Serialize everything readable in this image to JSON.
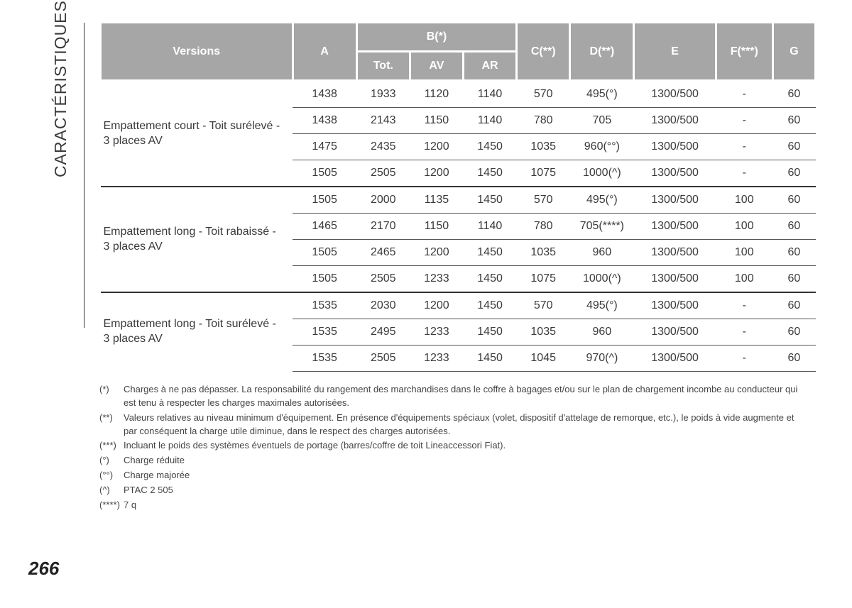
{
  "sidebar": {
    "label": "CARACTÉRISTIQUES TECHNIQUES"
  },
  "table": {
    "header": {
      "versions": "Versions",
      "A": "A",
      "B": "B(*)",
      "Tot": "Tot.",
      "AV": "AV",
      "AR": "AR",
      "C": "C(**)",
      "D": "D(**)",
      "E": "E",
      "F": "F(***)",
      "G": "G"
    },
    "groups": [
      {
        "label": "Empattement court - Toit surélevé - 3 places AV",
        "rows": [
          {
            "A": "1438",
            "Tot": "1933",
            "AV": "1120",
            "AR": "1140",
            "C": "570",
            "D": "495(°)",
            "E": "1300/500",
            "F": "-",
            "G": "60"
          },
          {
            "A": "1438",
            "Tot": "2143",
            "AV": "1150",
            "AR": "1140",
            "C": "780",
            "D": "705",
            "E": "1300/500",
            "F": "-",
            "G": "60"
          },
          {
            "A": "1475",
            "Tot": "2435",
            "AV": "1200",
            "AR": "1450",
            "C": "1035",
            "D": "960(°°)",
            "E": "1300/500",
            "F": "-",
            "G": "60"
          },
          {
            "A": "1505",
            "Tot": "2505",
            "AV": "1200",
            "AR": "1450",
            "C": "1075",
            "D": "1000(^)",
            "E": "1300/500",
            "F": "-",
            "G": "60"
          }
        ]
      },
      {
        "label": "Empattement long - Toit rabaissé - 3 places AV",
        "rows": [
          {
            "A": "1505",
            "Tot": "2000",
            "AV": "1135",
            "AR": "1450",
            "C": "570",
            "D": "495(°)",
            "E": "1300/500",
            "F": "100",
            "G": "60"
          },
          {
            "A": "1465",
            "Tot": "2170",
            "AV": "1150",
            "AR": "1140",
            "C": "780",
            "D": "705(****)",
            "E": "1300/500",
            "F": "100",
            "G": "60"
          },
          {
            "A": "1505",
            "Tot": "2465",
            "AV": "1200",
            "AR": "1450",
            "C": "1035",
            "D": "960",
            "E": "1300/500",
            "F": "100",
            "G": "60"
          },
          {
            "A": "1505",
            "Tot": "2505",
            "AV": "1233",
            "AR": "1450",
            "C": "1075",
            "D": "1000(^)",
            "E": "1300/500",
            "F": "100",
            "G": "60"
          }
        ]
      },
      {
        "label": "Empattement long - Toit surélevé - 3 places AV",
        "rows": [
          {
            "A": "1535",
            "Tot": "2030",
            "AV": "1200",
            "AR": "1450",
            "C": "570",
            "D": "495(°)",
            "E": "1300/500",
            "F": "-",
            "G": "60"
          },
          {
            "A": "1535",
            "Tot": "2495",
            "AV": "1233",
            "AR": "1450",
            "C": "1035",
            "D": "960",
            "E": "1300/500",
            "F": "-",
            "G": "60"
          },
          {
            "A": "1535",
            "Tot": "2505",
            "AV": "1233",
            "AR": "1450",
            "C": "1045",
            "D": "970(^)",
            "E": "1300/500",
            "F": "-",
            "G": "60"
          }
        ]
      }
    ]
  },
  "footnotes": [
    {
      "mark": "(*)",
      "text": "Charges à ne pas dépasser. La responsabilité du rangement des marchandises dans le coffre à bagages et/ou sur le plan de chargement incombe au conducteur qui est tenu à respecter les charges maximales autorisées."
    },
    {
      "mark": "(**)",
      "text": "Valeurs relatives au niveau minimum d'équipement. En présence d'équipements spéciaux (volet, dispositif d'attelage de remorque, etc.), le poids à vide augmente et par conséquent la charge utile diminue, dans le respect des charges autorisées."
    },
    {
      "mark": "(***)",
      "text": "Incluant le poids des systèmes éventuels de portage (barres/coffre de toit Lineaccessori Fiat)."
    },
    {
      "mark": "(°)",
      "text": "Charge réduite"
    },
    {
      "mark": "(°°)",
      "text": "Charge majorée"
    },
    {
      "mark": "(^)",
      "text": "PTAC 2 505"
    },
    {
      "mark": "(****)",
      "text": "7 q"
    }
  ],
  "pagenum": "266",
  "style": {
    "header_bg": "#a6a6a6",
    "header_fg": "#ffffff",
    "text_color": "#3a3a3a",
    "rule_color": "#333333"
  }
}
